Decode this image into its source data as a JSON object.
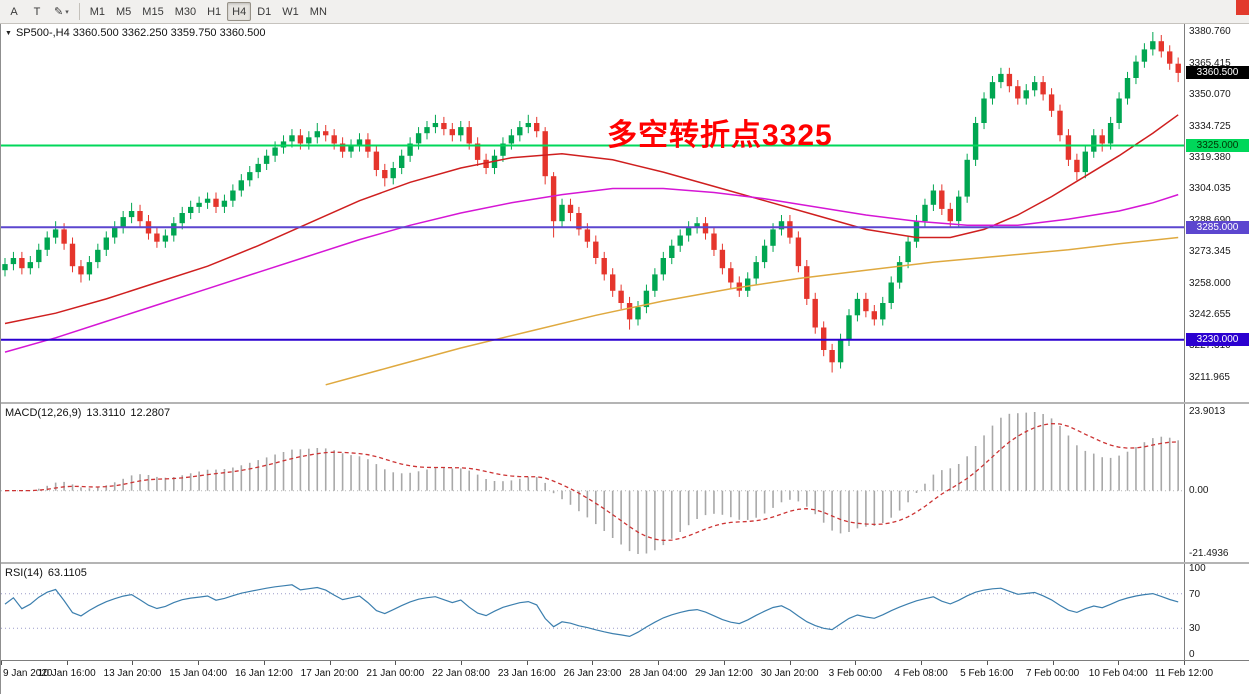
{
  "window": {
    "close_button_color": "#e23a2c"
  },
  "toolbar": {
    "tool_buttons": [
      {
        "id": "font-tool",
        "label": "A",
        "has_dropdown": false
      },
      {
        "id": "text-tool",
        "label": "T",
        "has_dropdown": false
      },
      {
        "id": "color-picker-tool",
        "label": "✎",
        "has_dropdown": true
      }
    ],
    "timeframes": [
      "M1",
      "M5",
      "M15",
      "M30",
      "H1",
      "H4",
      "D1",
      "W1",
      "MN"
    ],
    "selected_timeframe": "H4"
  },
  "chart": {
    "title": "SP500-,H4 3360.500 3362.250 3359.750 3360.500",
    "symbol": "SP500-",
    "period": "H4",
    "annotation": {
      "text": "多空转折点3325",
      "color": "#ff0000"
    },
    "current_price_label": "3360.500",
    "price_range": {
      "top": 3384.4,
      "bottom": 3199.6
    },
    "y_ticks": [
      3380.76,
      3365.415,
      3350.07,
      3334.725,
      3319.38,
      3304.035,
      3288.69,
      3273.345,
      3258.0,
      3242.655,
      3227.31,
      3211.965
    ],
    "hlines": [
      {
        "price": 3325,
        "label": "3325.000",
        "color": "#00d75a",
        "text_color": "#003300"
      },
      {
        "price": 3285,
        "label": "3285.000",
        "color": "#5c46cf",
        "text_color": "#ffffff"
      },
      {
        "price": 3230,
        "label": "3230.000",
        "color": "#2b00d0",
        "text_color": "#ffffff"
      }
    ]
  },
  "chart_data": {
    "type": "candlestick",
    "symbol": "SP500-",
    "timeframe": "H4",
    "x_labels": [
      "9 Jan 2020",
      "10 Jan 16:00",
      "13 Jan 20:00",
      "15 Jan 04:00",
      "16 Jan 12:00",
      "17 Jan 20:00",
      "21 Jan 00:00",
      "22 Jan 08:00",
      "23 Jan 16:00",
      "26 Jan 23:00",
      "28 Jan 04:00",
      "29 Jan 12:00",
      "30 Jan 20:00",
      "3 Feb 00:00",
      "4 Feb 08:00",
      "5 Feb 16:00",
      "7 Feb 00:00",
      "10 Feb 04:00",
      "11 Feb 12:00"
    ],
    "candles": [
      [
        3264,
        3270,
        3261,
        3267
      ],
      [
        3267,
        3273,
        3264,
        3270
      ],
      [
        3270,
        3273,
        3262,
        3265
      ],
      [
        3265,
        3271,
        3262,
        3268
      ],
      [
        3268,
        3277,
        3265,
        3274
      ],
      [
        3274,
        3283,
        3271,
        3280
      ],
      [
        3280,
        3288,
        3277,
        3284
      ],
      [
        3284,
        3287,
        3274,
        3277
      ],
      [
        3277,
        3280,
        3263,
        3266
      ],
      [
        3266,
        3269,
        3258,
        3262
      ],
      [
        3262,
        3271,
        3259,
        3268
      ],
      [
        3268,
        3277,
        3265,
        3274
      ],
      [
        3274,
        3283,
        3271,
        3280
      ],
      [
        3280,
        3288,
        3277,
        3285
      ],
      [
        3285,
        3293,
        3282,
        3290
      ],
      [
        3290,
        3297,
        3287,
        3293
      ],
      [
        3293,
        3296,
        3285,
        3288
      ],
      [
        3288,
        3291,
        3279,
        3282
      ],
      [
        3282,
        3285,
        3275,
        3278
      ],
      [
        3278,
        3284,
        3275,
        3281
      ],
      [
        3281,
        3290,
        3278,
        3287
      ],
      [
        3287,
        3295,
        3284,
        3292
      ],
      [
        3292,
        3298,
        3289,
        3295
      ],
      [
        3295,
        3300,
        3292,
        3297
      ],
      [
        3297,
        3302,
        3294,
        3299
      ],
      [
        3299,
        3302,
        3292,
        3295
      ],
      [
        3295,
        3301,
        3292,
        3298
      ],
      [
        3298,
        3306,
        3295,
        3303
      ],
      [
        3303,
        3311,
        3300,
        3308
      ],
      [
        3308,
        3315,
        3305,
        3312
      ],
      [
        3312,
        3319,
        3309,
        3316
      ],
      [
        3316,
        3323,
        3313,
        3320
      ],
      [
        3320,
        3327,
        3317,
        3324
      ],
      [
        3324,
        3330,
        3321,
        3327
      ],
      [
        3327,
        3333,
        3324,
        3330
      ],
      [
        3330,
        3333,
        3323,
        3326
      ],
      [
        3326,
        3332,
        3323,
        3329
      ],
      [
        3329,
        3336,
        3326,
        3332
      ],
      [
        3332,
        3335,
        3327,
        3330
      ],
      [
        3330,
        3333,
        3323,
        3326
      ],
      [
        3326,
        3329,
        3319,
        3322
      ],
      [
        3322,
        3328,
        3319,
        3325
      ],
      [
        3325,
        3331,
        3322,
        3328
      ],
      [
        3328,
        3331,
        3319,
        3322
      ],
      [
        3322,
        3325,
        3310,
        3313
      ],
      [
        3313,
        3316,
        3305,
        3309
      ],
      [
        3309,
        3317,
        3306,
        3314
      ],
      [
        3314,
        3323,
        3311,
        3320
      ],
      [
        3320,
        3329,
        3317,
        3326
      ],
      [
        3326,
        3334,
        3323,
        3331
      ],
      [
        3331,
        3337,
        3328,
        3334
      ],
      [
        3334,
        3340,
        3331,
        3336
      ],
      [
        3336,
        3339,
        3330,
        3333
      ],
      [
        3333,
        3336,
        3327,
        3330
      ],
      [
        3330,
        3337,
        3327,
        3334
      ],
      [
        3334,
        3337,
        3323,
        3326
      ],
      [
        3326,
        3329,
        3315,
        3318
      ],
      [
        3318,
        3321,
        3311,
        3314
      ],
      [
        3314,
        3323,
        3311,
        3320
      ],
      [
        3320,
        3329,
        3317,
        3326
      ],
      [
        3326,
        3333,
        3323,
        3330
      ],
      [
        3330,
        3337,
        3327,
        3334
      ],
      [
        3334,
        3340,
        3331,
        3336
      ],
      [
        3336,
        3339,
        3329,
        3332
      ],
      [
        3332,
        3334,
        3306,
        3310
      ],
      [
        3310,
        3312,
        3280,
        3288
      ],
      [
        3288,
        3299,
        3285,
        3296
      ],
      [
        3296,
        3299,
        3288,
        3292
      ],
      [
        3292,
        3295,
        3281,
        3284
      ],
      [
        3284,
        3287,
        3275,
        3278
      ],
      [
        3278,
        3281,
        3267,
        3270
      ],
      [
        3270,
        3273,
        3259,
        3262
      ],
      [
        3262,
        3265,
        3251,
        3254
      ],
      [
        3254,
        3257,
        3245,
        3248
      ],
      [
        3248,
        3251,
        3235,
        3240
      ],
      [
        3240,
        3249,
        3237,
        3246
      ],
      [
        3246,
        3257,
        3243,
        3254
      ],
      [
        3254,
        3265,
        3251,
        3262
      ],
      [
        3262,
        3273,
        3259,
        3270
      ],
      [
        3270,
        3279,
        3267,
        3276
      ],
      [
        3276,
        3284,
        3273,
        3281
      ],
      [
        3281,
        3288,
        3278,
        3285
      ],
      [
        3285,
        3290,
        3282,
        3287
      ],
      [
        3287,
        3290,
        3279,
        3282
      ],
      [
        3282,
        3285,
        3271,
        3274
      ],
      [
        3274,
        3277,
        3262,
        3265
      ],
      [
        3265,
        3268,
        3255,
        3258
      ],
      [
        3258,
        3261,
        3251,
        3254
      ],
      [
        3254,
        3263,
        3251,
        3260
      ],
      [
        3260,
        3271,
        3257,
        3268
      ],
      [
        3268,
        3279,
        3265,
        3276
      ],
      [
        3276,
        3287,
        3273,
        3284
      ],
      [
        3284,
        3291,
        3281,
        3288
      ],
      [
        3288,
        3291,
        3277,
        3280
      ],
      [
        3280,
        3283,
        3263,
        3266
      ],
      [
        3266,
        3269,
        3247,
        3250
      ],
      [
        3250,
        3253,
        3233,
        3236
      ],
      [
        3236,
        3239,
        3222,
        3225
      ],
      [
        3225,
        3228,
        3214,
        3219
      ],
      [
        3219,
        3233,
        3216,
        3230
      ],
      [
        3230,
        3245,
        3227,
        3242
      ],
      [
        3242,
        3253,
        3239,
        3250
      ],
      [
        3250,
        3253,
        3241,
        3244
      ],
      [
        3244,
        3247,
        3237,
        3240
      ],
      [
        3240,
        3251,
        3237,
        3248
      ],
      [
        3248,
        3261,
        3245,
        3258
      ],
      [
        3258,
        3271,
        3255,
        3268
      ],
      [
        3268,
        3281,
        3265,
        3278
      ],
      [
        3278,
        3291,
        3275,
        3288
      ],
      [
        3288,
        3299,
        3285,
        3296
      ],
      [
        3296,
        3306,
        3293,
        3303
      ],
      [
        3303,
        3306,
        3291,
        3294
      ],
      [
        3294,
        3297,
        3285,
        3288
      ],
      [
        3288,
        3303,
        3285,
        3300
      ],
      [
        3300,
        3321,
        3297,
        3318
      ],
      [
        3318,
        3339,
        3315,
        3336
      ],
      [
        3336,
        3351,
        3333,
        3348
      ],
      [
        3348,
        3359,
        3345,
        3356
      ],
      [
        3356,
        3363,
        3353,
        3360
      ],
      [
        3360,
        3363,
        3351,
        3354
      ],
      [
        3354,
        3357,
        3345,
        3348
      ],
      [
        3348,
        3355,
        3345,
        3352
      ],
      [
        3352,
        3359,
        3349,
        3356
      ],
      [
        3356,
        3359,
        3347,
        3350
      ],
      [
        3350,
        3353,
        3339,
        3342
      ],
      [
        3342,
        3345,
        3327,
        3330
      ],
      [
        3330,
        3333,
        3315,
        3318
      ],
      [
        3318,
        3321,
        3308,
        3312
      ],
      [
        3312,
        3325,
        3309,
        3322
      ],
      [
        3322,
        3333,
        3319,
        3330
      ],
      [
        3330,
        3333,
        3322,
        3326
      ],
      [
        3326,
        3339,
        3323,
        3336
      ],
      [
        3336,
        3351,
        3333,
        3348
      ],
      [
        3348,
        3361,
        3345,
        3358
      ],
      [
        3358,
        3369,
        3355,
        3366
      ],
      [
        3366,
        3375,
        3363,
        3372
      ],
      [
        3372,
        3380.5,
        3369,
        3376
      ],
      [
        3376,
        3379,
        3368,
        3371
      ],
      [
        3371,
        3374,
        3362,
        3365
      ],
      [
        3365,
        3368,
        3356,
        3360.5
      ]
    ],
    "moving_averages": [
      {
        "name": "ma-fast-red",
        "color": "#cf1f1f",
        "points": [
          [
            0,
            3238
          ],
          [
            6,
            3243
          ],
          [
            12,
            3250
          ],
          [
            18,
            3258
          ],
          [
            24,
            3266
          ],
          [
            30,
            3276
          ],
          [
            36,
            3287
          ],
          [
            42,
            3298
          ],
          [
            48,
            3307
          ],
          [
            54,
            3314
          ],
          [
            60,
            3319
          ],
          [
            66,
            3321
          ],
          [
            72,
            3318
          ],
          [
            78,
            3312
          ],
          [
            84,
            3305
          ],
          [
            90,
            3298
          ],
          [
            96,
            3291
          ],
          [
            102,
            3284
          ],
          [
            108,
            3280
          ],
          [
            112,
            3280
          ],
          [
            116,
            3284
          ],
          [
            120,
            3291
          ],
          [
            124,
            3300
          ],
          [
            128,
            3310
          ],
          [
            132,
            3320
          ],
          [
            136,
            3331
          ],
          [
            139,
            3340
          ]
        ]
      },
      {
        "name": "ma-mid-magenta",
        "color": "#d516d5",
        "points": [
          [
            0,
            3224
          ],
          [
            6,
            3231
          ],
          [
            12,
            3239
          ],
          [
            18,
            3247
          ],
          [
            24,
            3255
          ],
          [
            30,
            3263
          ],
          [
            36,
            3271
          ],
          [
            42,
            3279
          ],
          [
            48,
            3286
          ],
          [
            54,
            3292
          ],
          [
            60,
            3297
          ],
          [
            66,
            3301
          ],
          [
            72,
            3304
          ],
          [
            78,
            3304
          ],
          [
            84,
            3302
          ],
          [
            90,
            3299
          ],
          [
            96,
            3295
          ],
          [
            102,
            3291
          ],
          [
            108,
            3288
          ],
          [
            114,
            3286
          ],
          [
            120,
            3286
          ],
          [
            126,
            3289
          ],
          [
            132,
            3293
          ],
          [
            136,
            3297
          ],
          [
            139,
            3301
          ]
        ]
      },
      {
        "name": "ma-slow-orange",
        "color": "#dfa93f",
        "points": [
          [
            38,
            3208
          ],
          [
            46,
            3217
          ],
          [
            54,
            3226
          ],
          [
            62,
            3234
          ],
          [
            70,
            3242
          ],
          [
            78,
            3249
          ],
          [
            86,
            3255
          ],
          [
            94,
            3260
          ],
          [
            102,
            3264
          ],
          [
            110,
            3268
          ],
          [
            118,
            3271
          ],
          [
            126,
            3274
          ],
          [
            132,
            3277
          ],
          [
            139,
            3280
          ]
        ]
      }
    ],
    "indicators": {
      "macd": {
        "label": "MACD(12,26,9)",
        "value": "13.3110",
        "signal_value": "12.2807",
        "fast": 12,
        "slow": 26,
        "signal": 9,
        "axis_max": "23.9013",
        "axis_zero": "0.00",
        "axis_min": "-21.4936"
      },
      "rsi": {
        "label": "RSI(14)",
        "value": "63.1105",
        "period": 14,
        "axis_ticks": [
          100,
          70,
          30,
          0
        ],
        "levels": [
          70,
          30
        ]
      }
    }
  },
  "colors": {
    "bull": "#00a651",
    "bear": "#e5352c",
    "macd_hist": "#a8a8a8",
    "macd_signal": "#cc3333",
    "rsi_line": "#3c7fae",
    "rsi_level": "#9a9ac8",
    "price_marker_bg": "#000000",
    "price_marker_text": "#ffffff"
  }
}
